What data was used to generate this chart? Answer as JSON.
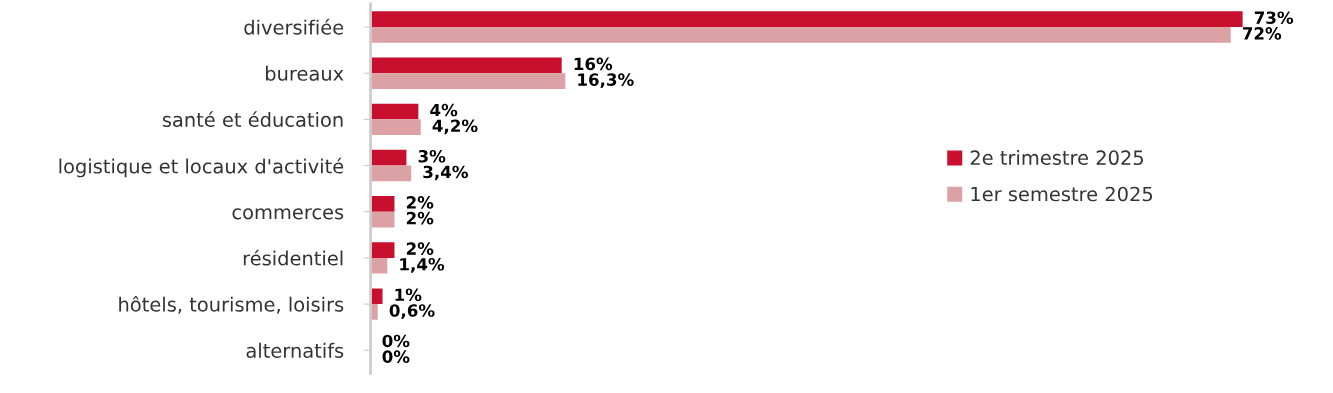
{
  "chart_data": {
    "type": "bar",
    "orientation": "horizontal",
    "categories": [
      "diversifiée",
      "bureaux",
      "santé et éducation",
      "logistique et locaux d'activité",
      "commerces",
      "résidentiel",
      "hôtels, tourisme, loisirs",
      "alternatifs"
    ],
    "series": [
      {
        "name": "2e trimestre 2025",
        "color": "#c8102e",
        "values": [
          73,
          16,
          4,
          3,
          2,
          2,
          1,
          0
        ],
        "value_labels": [
          "73%",
          "16%",
          "4%",
          "3%",
          "2%",
          "2%",
          "1%",
          "0%"
        ]
      },
      {
        "name": "1er semestre 2025",
        "color": "#dba1a5",
        "values": [
          72,
          16.3,
          4.2,
          3.4,
          2,
          1.4,
          0.6,
          0
        ],
        "value_labels": [
          "72%",
          "16,3%",
          "4,2%",
          "3,4%",
          "2%",
          "1,4%",
          "0,6%",
          "0%"
        ]
      }
    ],
    "legend": "right",
    "grid": false
  }
}
